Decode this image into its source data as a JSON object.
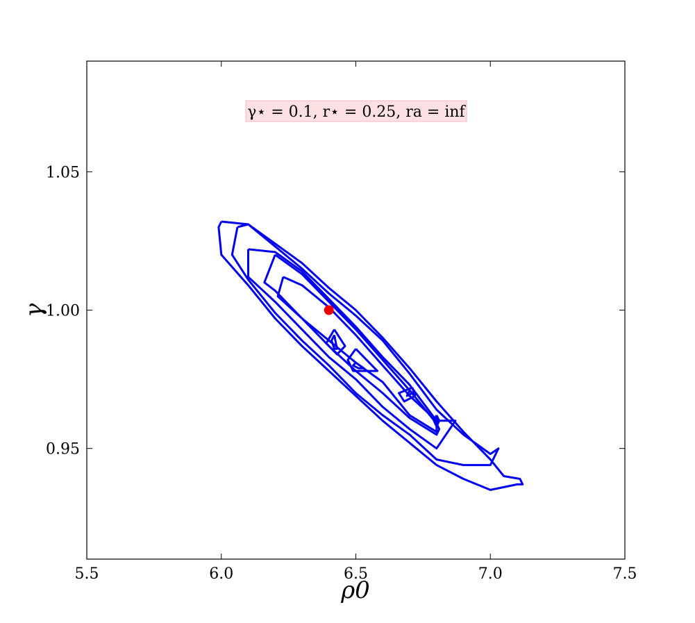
{
  "chart_data": {
    "type": "contour",
    "xlabel": "ρ0",
    "ylabel": "γ",
    "xlim": [
      5.5,
      7.5
    ],
    "ylim": [
      0.91,
      1.09
    ],
    "xticks": [
      "5.5",
      "6.0",
      "6.5",
      "7.0",
      "7.5"
    ],
    "yticks": [
      "0.95",
      "1.00",
      "1.05"
    ],
    "annotation": "γ⋆ = 0.1, r⋆ = 0.25, ra = inf",
    "colors": {
      "contour": "#0000ee",
      "marker": "#ee0000",
      "annotation_box": "#fde0e3",
      "annotation_border": "#f3b8bf"
    },
    "marker": {
      "x": 6.4,
      "y": 1.0
    },
    "contours": [
      {
        "name": "level-1",
        "points": [
          [
            6.0,
            1.032
          ],
          [
            6.1,
            1.031
          ],
          [
            6.2,
            1.024
          ],
          [
            6.3,
            1.017
          ],
          [
            6.4,
            1.008
          ],
          [
            6.5,
            1.0
          ],
          [
            6.6,
            0.99
          ],
          [
            6.7,
            0.979
          ],
          [
            6.8,
            0.967
          ],
          [
            6.9,
            0.956
          ],
          [
            7.0,
            0.946
          ],
          [
            7.05,
            0.94
          ],
          [
            7.11,
            0.939
          ],
          [
            7.12,
            0.937
          ],
          [
            7.1,
            0.937
          ],
          [
            7.0,
            0.935
          ],
          [
            6.9,
            0.939
          ],
          [
            6.8,
            0.944
          ],
          [
            6.7,
            0.952
          ],
          [
            6.6,
            0.96
          ],
          [
            6.5,
            0.969
          ],
          [
            6.4,
            0.978
          ],
          [
            6.3,
            0.987
          ],
          [
            6.2,
            0.997
          ],
          [
            6.1,
            1.009
          ],
          [
            6.0,
            1.02
          ],
          [
            5.99,
            1.03
          ],
          [
            6.0,
            1.032
          ]
        ]
      },
      {
        "name": "level-2",
        "points": [
          [
            6.06,
            1.03
          ],
          [
            6.1,
            1.031
          ],
          [
            6.2,
            1.023
          ],
          [
            6.3,
            1.015
          ],
          [
            6.4,
            1.006
          ],
          [
            6.5,
            0.998
          ],
          [
            6.6,
            0.989
          ],
          [
            6.7,
            0.977
          ],
          [
            6.8,
            0.964
          ],
          [
            6.9,
            0.955
          ],
          [
            7.0,
            0.948
          ],
          [
            7.03,
            0.95
          ],
          [
            7.0,
            0.944
          ],
          [
            6.9,
            0.944
          ],
          [
            6.8,
            0.946
          ],
          [
            6.7,
            0.955
          ],
          [
            6.6,
            0.962
          ],
          [
            6.5,
            0.97
          ],
          [
            6.4,
            0.98
          ],
          [
            6.3,
            0.989
          ],
          [
            6.2,
            0.999
          ],
          [
            6.1,
            1.011
          ],
          [
            6.04,
            1.02
          ],
          [
            6.06,
            1.03
          ]
        ]
      },
      {
        "name": "level-3",
        "points": [
          [
            6.1,
            1.022
          ],
          [
            6.2,
            1.021
          ],
          [
            6.3,
            1.014
          ],
          [
            6.4,
            1.004
          ],
          [
            6.5,
            0.994
          ],
          [
            6.6,
            0.983
          ],
          [
            6.7,
            0.973
          ],
          [
            6.8,
            0.96
          ],
          [
            6.87,
            0.96
          ],
          [
            6.8,
            0.95
          ],
          [
            6.7,
            0.957
          ],
          [
            6.6,
            0.965
          ],
          [
            6.5,
            0.975
          ],
          [
            6.4,
            0.983
          ],
          [
            6.3,
            0.993
          ],
          [
            6.2,
            1.003
          ],
          [
            6.1,
            1.012
          ],
          [
            6.1,
            1.022
          ]
        ]
      },
      {
        "name": "level-4",
        "points": [
          [
            6.2,
            1.02
          ],
          [
            6.3,
            1.013
          ],
          [
            6.4,
            1.003
          ],
          [
            6.5,
            0.993
          ],
          [
            6.6,
            0.982
          ],
          [
            6.7,
            0.971
          ],
          [
            6.8,
            0.959
          ],
          [
            6.81,
            0.957
          ],
          [
            6.8,
            0.955
          ],
          [
            6.7,
            0.961
          ],
          [
            6.6,
            0.97
          ],
          [
            6.5,
            0.978
          ],
          [
            6.4,
            0.987
          ],
          [
            6.3,
            0.997
          ],
          [
            6.2,
            1.007
          ],
          [
            6.16,
            1.01
          ],
          [
            6.2,
            1.02
          ]
        ]
      },
      {
        "name": "level-5",
        "points": [
          [
            6.23,
            1.012
          ],
          [
            6.3,
            1.009
          ],
          [
            6.4,
            1.001
          ],
          [
            6.5,
            0.991
          ],
          [
            6.6,
            0.98
          ],
          [
            6.7,
            0.969
          ],
          [
            6.8,
            0.96
          ],
          [
            6.8,
            0.956
          ],
          [
            6.7,
            0.962
          ],
          [
            6.6,
            0.974
          ],
          [
            6.5,
            0.981
          ],
          [
            6.4,
            0.989
          ],
          [
            6.3,
            0.997
          ],
          [
            6.21,
            1.005
          ],
          [
            6.23,
            1.012
          ]
        ]
      },
      {
        "name": "island-1-outer",
        "points": [
          [
            6.42,
            0.993
          ],
          [
            6.46,
            0.987
          ],
          [
            6.43,
            0.984
          ],
          [
            6.39,
            0.988
          ],
          [
            6.42,
            0.993
          ]
        ]
      },
      {
        "name": "island-1-inner",
        "points": [
          [
            6.42,
            0.991
          ],
          [
            6.43,
            0.986
          ],
          [
            6.42,
            0.986
          ],
          [
            6.41,
            0.989
          ],
          [
            6.42,
            0.991
          ]
        ]
      },
      {
        "name": "island-2-outer",
        "points": [
          [
            6.5,
            0.986
          ],
          [
            6.58,
            0.978
          ],
          [
            6.56,
            0.978
          ],
          [
            6.49,
            0.978
          ],
          [
            6.47,
            0.982
          ],
          [
            6.5,
            0.986
          ]
        ]
      },
      {
        "name": "island-2-inner",
        "points": [
          [
            6.5,
            0.981
          ],
          [
            6.53,
            0.979
          ],
          [
            6.51,
            0.979
          ],
          [
            6.49,
            0.98
          ],
          [
            6.5,
            0.981
          ]
        ]
      },
      {
        "name": "island-3-outer",
        "points": [
          [
            6.71,
            0.972
          ],
          [
            6.72,
            0.969
          ],
          [
            6.68,
            0.967
          ],
          [
            6.66,
            0.97
          ],
          [
            6.71,
            0.972
          ]
        ]
      },
      {
        "name": "island-3-inner",
        "points": [
          [
            6.7,
            0.971
          ],
          [
            6.71,
            0.97
          ],
          [
            6.69,
            0.969
          ],
          [
            6.7,
            0.971
          ]
        ]
      },
      {
        "name": "island-4-outer",
        "points": [
          [
            6.8,
            0.962
          ],
          [
            6.81,
            0.96
          ],
          [
            6.8,
            0.958
          ],
          [
            6.79,
            0.96
          ],
          [
            6.8,
            0.962
          ]
        ]
      },
      {
        "name": "island-4-inner",
        "points": [
          [
            6.8,
            0.961
          ],
          [
            6.81,
            0.96
          ],
          [
            6.8,
            0.959
          ],
          [
            6.8,
            0.961
          ]
        ]
      }
    ]
  }
}
